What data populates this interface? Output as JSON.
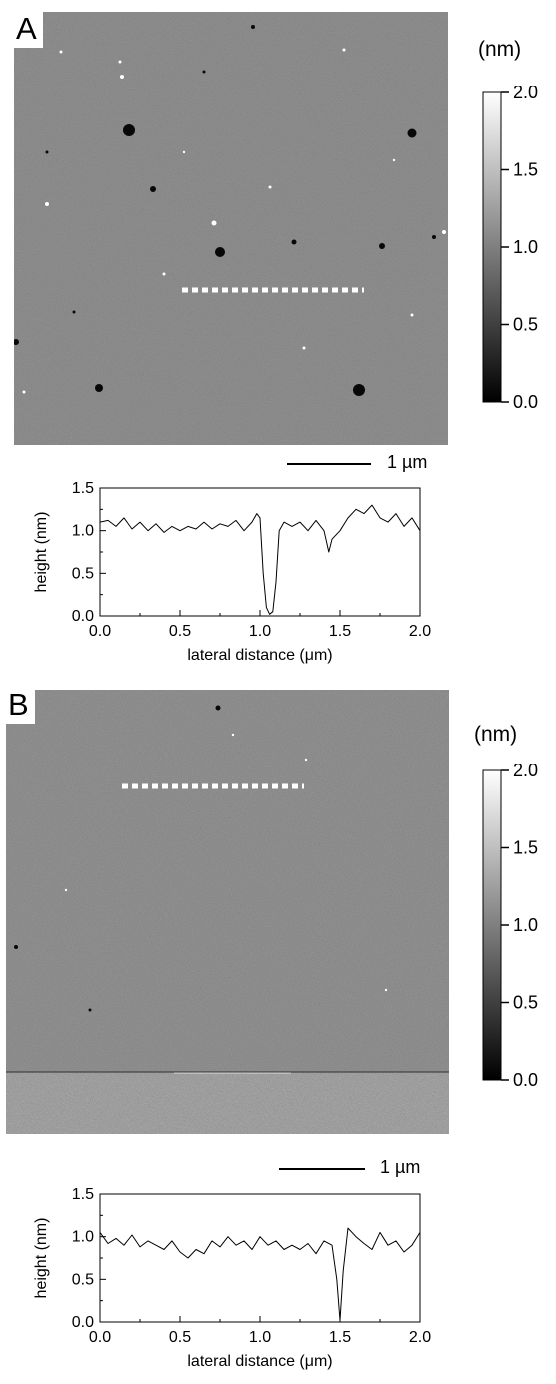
{
  "panels": [
    {
      "label": "A",
      "colorbar": {
        "unit": "(nm)",
        "min": 0.0,
        "max": 2.0,
        "ticks": [
          "0.0",
          "0.5",
          "1.0",
          "1.5",
          "2.0"
        ]
      },
      "scale_bar": {
        "label": "1 µm"
      },
      "image_icon": "afm-height-map"
    },
    {
      "label": "B",
      "colorbar": {
        "unit": "(nm)",
        "min": 0.0,
        "max": 2.0,
        "ticks": [
          "0.0",
          "0.5",
          "1.0",
          "1.5",
          "2.0"
        ]
      },
      "scale_bar": {
        "label": "1 µm"
      },
      "image_icon": "afm-height-map"
    }
  ],
  "chart_data": [
    {
      "type": "line",
      "panel": "A",
      "xlabel": "lateral distance (μm)",
      "ylabel": "height (nm)",
      "xlim": [
        0.0,
        2.0
      ],
      "ylim": [
        0.0,
        1.5
      ],
      "x_ticks": [
        "0.0",
        "0.5",
        "1.0",
        "1.5",
        "2.0"
      ],
      "y_ticks": [
        "0.0",
        "0.5",
        "1.0",
        "1.5"
      ],
      "series": [
        {
          "x": [
            0.0,
            0.05,
            0.1,
            0.15,
            0.2,
            0.25,
            0.3,
            0.35,
            0.4,
            0.45,
            0.5,
            0.55,
            0.6,
            0.65,
            0.7,
            0.75,
            0.8,
            0.85,
            0.9,
            0.95,
            0.98,
            1.0,
            1.02,
            1.04,
            1.06,
            1.08,
            1.1,
            1.12,
            1.15,
            1.2,
            1.25,
            1.3,
            1.35,
            1.4,
            1.43,
            1.45,
            1.5,
            1.55,
            1.6,
            1.65,
            1.7,
            1.75,
            1.8,
            1.85,
            1.9,
            1.95,
            2.0
          ],
          "y": [
            1.1,
            1.12,
            1.05,
            1.15,
            1.02,
            1.1,
            1.0,
            1.08,
            0.98,
            1.05,
            1.0,
            1.05,
            1.02,
            1.1,
            1.02,
            1.08,
            1.05,
            1.12,
            1.0,
            1.1,
            1.2,
            1.15,
            0.5,
            0.1,
            0.02,
            0.05,
            0.4,
            1.0,
            1.1,
            1.05,
            1.1,
            1.0,
            1.12,
            1.0,
            0.75,
            0.9,
            1.0,
            1.15,
            1.25,
            1.2,
            1.3,
            1.15,
            1.1,
            1.2,
            1.05,
            1.15,
            1.0
          ]
        }
      ]
    },
    {
      "type": "line",
      "panel": "B",
      "xlabel": "lateral distance (μm)",
      "ylabel": "height (nm)",
      "xlim": [
        0.0,
        2.0
      ],
      "ylim": [
        0.0,
        1.5
      ],
      "x_ticks": [
        "0.0",
        "0.5",
        "1.0",
        "1.5",
        "2.0"
      ],
      "y_ticks": [
        "0.0",
        "0.5",
        "1.0",
        "1.5"
      ],
      "series": [
        {
          "x": [
            0.0,
            0.05,
            0.1,
            0.15,
            0.2,
            0.25,
            0.3,
            0.35,
            0.4,
            0.45,
            0.5,
            0.55,
            0.6,
            0.65,
            0.7,
            0.75,
            0.8,
            0.85,
            0.9,
            0.95,
            1.0,
            1.05,
            1.1,
            1.15,
            1.2,
            1.25,
            1.3,
            1.35,
            1.4,
            1.45,
            1.48,
            1.5,
            1.52,
            1.55,
            1.6,
            1.65,
            1.7,
            1.75,
            1.8,
            1.85,
            1.9,
            1.95,
            2.0
          ],
          "y": [
            1.05,
            0.92,
            0.98,
            0.9,
            1.02,
            0.88,
            0.95,
            0.9,
            0.85,
            0.95,
            0.82,
            0.75,
            0.85,
            0.8,
            0.95,
            0.88,
            1.0,
            0.9,
            0.95,
            0.85,
            1.0,
            0.9,
            0.95,
            0.85,
            0.9,
            0.85,
            0.92,
            0.8,
            0.95,
            0.9,
            0.5,
            0.02,
            0.6,
            1.1,
            1.0,
            0.92,
            0.85,
            1.05,
            0.9,
            0.95,
            0.82,
            0.9,
            1.05
          ]
        }
      ]
    }
  ]
}
